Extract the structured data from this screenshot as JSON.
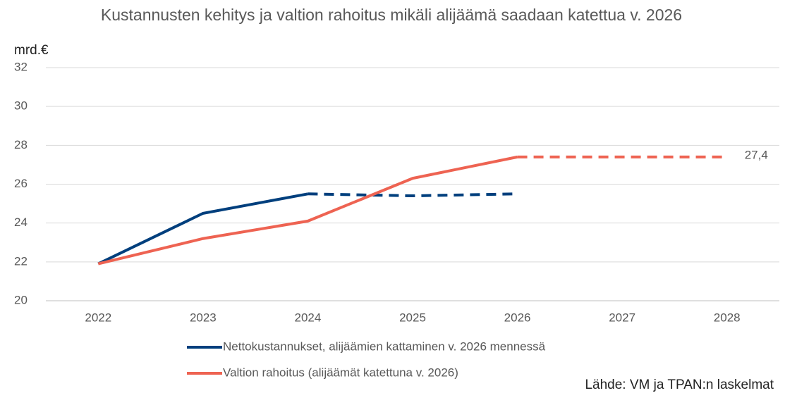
{
  "chart_data": {
    "type": "line",
    "title": "Kustannusten kehitys ja valtion rahoitus mikäli alijäämä saadaan katettua v. 2026",
    "y_axis_label": "mrd.€",
    "source": "Lähde: VM ja TPAN:n laskelmat",
    "categories": [
      "2022",
      "2023",
      "2024",
      "2025",
      "2026",
      "2027",
      "2028"
    ],
    "series": [
      {
        "name": "Nettokustannukset, alijäämien kattaminen v. 2026 mennessä",
        "color": "#003f7d",
        "dashed_from": "2024",
        "values": [
          21.9,
          24.5,
          25.5,
          25.4,
          25.5,
          null,
          null
        ]
      },
      {
        "name": "Valtion rahoitus (alijäämät katettuna v. 2026)",
        "color": "#ee6352",
        "dashed_from": "2026",
        "values": [
          21.9,
          23.2,
          24.1,
          26.3,
          27.4,
          27.4,
          27.4
        ],
        "value_labels": [
          null,
          null,
          null,
          null,
          null,
          null,
          "27,4"
        ]
      }
    ],
    "ylim": [
      20,
      32
    ],
    "yticks": [
      20,
      22,
      24,
      26,
      28,
      30,
      32
    ],
    "grid": true
  }
}
